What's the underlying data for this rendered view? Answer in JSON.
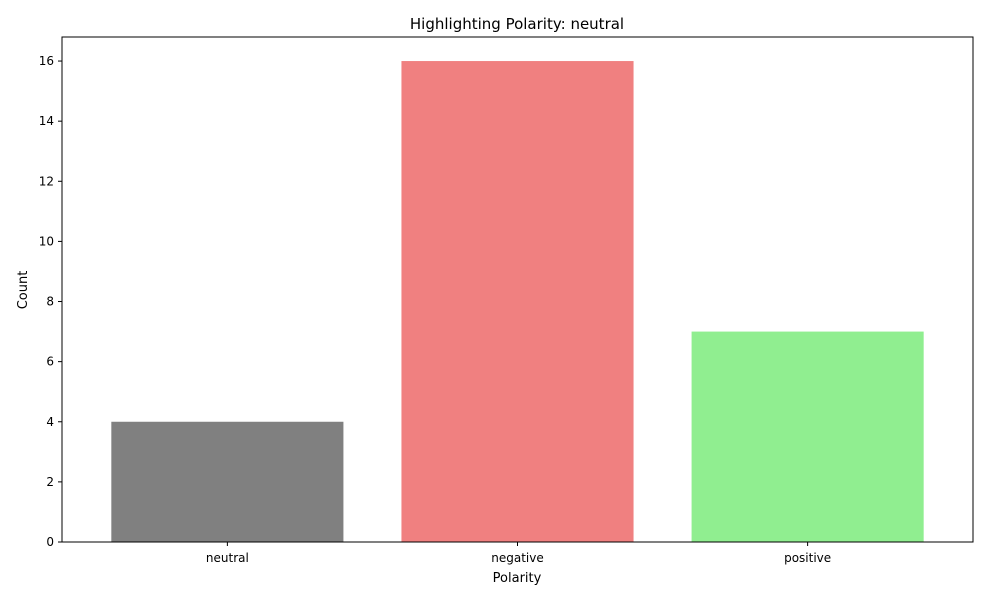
{
  "chart_data": {
    "type": "bar",
    "title": "Highlighting Polarity: neutral",
    "xlabel": "Polarity",
    "ylabel": "Count",
    "categories": [
      "neutral",
      "negative",
      "positive"
    ],
    "values": [
      4,
      16,
      7
    ],
    "colors": [
      "#808080",
      "#f08080",
      "#90ee90"
    ],
    "ylim": [
      0,
      16.8
    ],
    "yticks": [
      "0",
      "2",
      "4",
      "6",
      "8",
      "10",
      "12",
      "14",
      "16"
    ],
    "grid": false,
    "legend": "none"
  }
}
